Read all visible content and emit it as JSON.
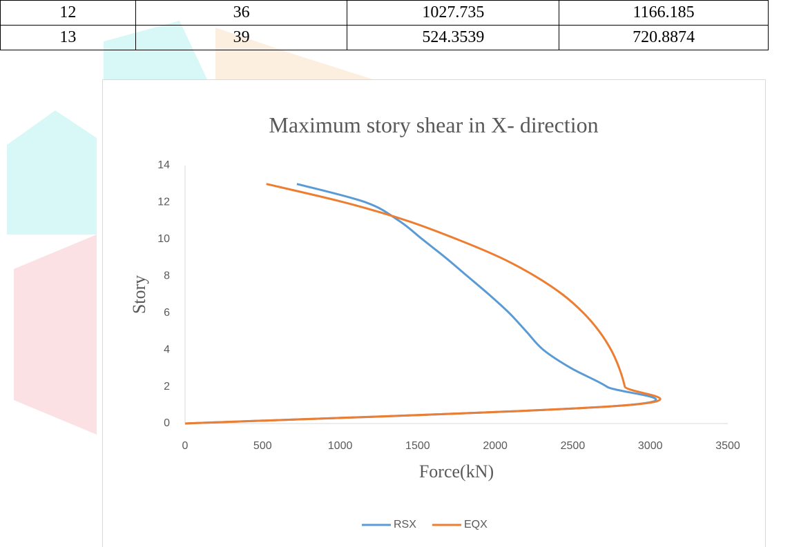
{
  "table": {
    "rows": [
      [
        "12",
        "36",
        "1027.735",
        "1166.185"
      ],
      [
        "13",
        "39",
        "524.3539",
        "720.8874"
      ]
    ]
  },
  "chart_data": {
    "type": "line",
    "title": "Maximum story shear in X- direction",
    "xlabel": "Force(kN)",
    "ylabel": "Story",
    "xlim": [
      0,
      3500
    ],
    "xticks": [
      0,
      500,
      1000,
      1500,
      2000,
      2500,
      3000,
      3500
    ],
    "ylim": [
      0,
      14
    ],
    "yticks": [
      0,
      2,
      4,
      6,
      8,
      10,
      12,
      14
    ],
    "grid": false,
    "legend": "bottom",
    "series": [
      {
        "name": "RSX",
        "color": "#5b9bd5",
        "x": [
          0,
          2855,
          2720,
          2490,
          2310,
          2200,
          2090,
          1960,
          1820,
          1680,
          1530,
          1380,
          1166.185,
          720.8874
        ],
        "values": [
          0,
          1,
          2,
          3,
          4,
          5,
          6,
          7,
          8,
          9,
          10,
          11,
          12,
          13
        ]
      },
      {
        "name": "EQX",
        "color": "#ed7d31",
        "x": [
          0,
          2858,
          2836,
          2800,
          2747,
          2671,
          2569,
          2435,
          2257,
          2035,
          1754,
          1434,
          1027.735,
          524.3539
        ],
        "values": [
          0,
          1,
          2,
          3,
          4,
          5,
          6,
          7,
          8,
          9,
          10,
          11,
          12,
          13
        ]
      }
    ]
  }
}
